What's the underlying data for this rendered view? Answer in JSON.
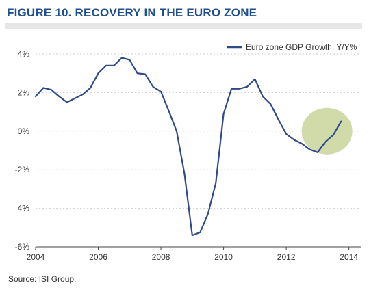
{
  "header": {
    "title": "FIGURE 10. RECOVERY IN THE EURO ZONE"
  },
  "footer": {
    "source": "Source: ISI Group."
  },
  "chart_data": {
    "type": "line",
    "title": "FIGURE 10. RECOVERY IN THE EURO ZONE",
    "xlabel": "",
    "ylabel": "",
    "xlim": [
      2004,
      2014.4
    ],
    "ylim": [
      -6,
      4
    ],
    "x_ticks": [
      2004,
      2006,
      2008,
      2010,
      2012,
      2014
    ],
    "x_tick_labels": [
      "2004",
      "2006",
      "2008",
      "2010",
      "2012",
      "2014"
    ],
    "y_ticks": [
      4,
      2,
      0,
      -2,
      -4,
      -6
    ],
    "y_tick_labels": [
      "4%",
      "2%",
      "0%",
      "-2%",
      "-4%",
      "-6%"
    ],
    "grid": {
      "horizontal": true,
      "style": "dashed",
      "vertical": false
    },
    "legend": {
      "position": "top-right"
    },
    "highlight": {
      "shape": "circle",
      "x": 2013.3,
      "y": 0,
      "color": "#c9d39a"
    },
    "colors": {
      "line": "#2e4a8a",
      "grid": "#cccccc",
      "highlight": "#c9d39a"
    },
    "series": [
      {
        "name": "Euro zone GDP Growth, Y/Y%",
        "x": [
          2004.0,
          2004.25,
          2004.5,
          2004.75,
          2005.0,
          2005.25,
          2005.5,
          2005.75,
          2006.0,
          2006.25,
          2006.5,
          2006.75,
          2007.0,
          2007.25,
          2007.5,
          2007.75,
          2008.0,
          2008.25,
          2008.5,
          2008.75,
          2009.0,
          2009.25,
          2009.5,
          2009.75,
          2010.0,
          2010.25,
          2010.5,
          2010.75,
          2011.0,
          2011.25,
          2011.5,
          2011.75,
          2012.0,
          2012.25,
          2012.5,
          2012.75,
          2013.0,
          2013.25,
          2013.5,
          2013.75
        ],
        "y": [
          1.8,
          2.25,
          2.15,
          1.8,
          1.5,
          1.7,
          1.9,
          2.25,
          3.0,
          3.4,
          3.4,
          3.8,
          3.7,
          3.0,
          2.95,
          2.3,
          2.05,
          1.05,
          0.0,
          -2.2,
          -5.4,
          -5.25,
          -4.3,
          -2.7,
          0.9,
          2.2,
          2.2,
          2.3,
          2.7,
          1.8,
          1.4,
          0.6,
          -0.15,
          -0.45,
          -0.65,
          -0.95,
          -1.1,
          -0.55,
          -0.2,
          0.5
        ]
      }
    ]
  }
}
